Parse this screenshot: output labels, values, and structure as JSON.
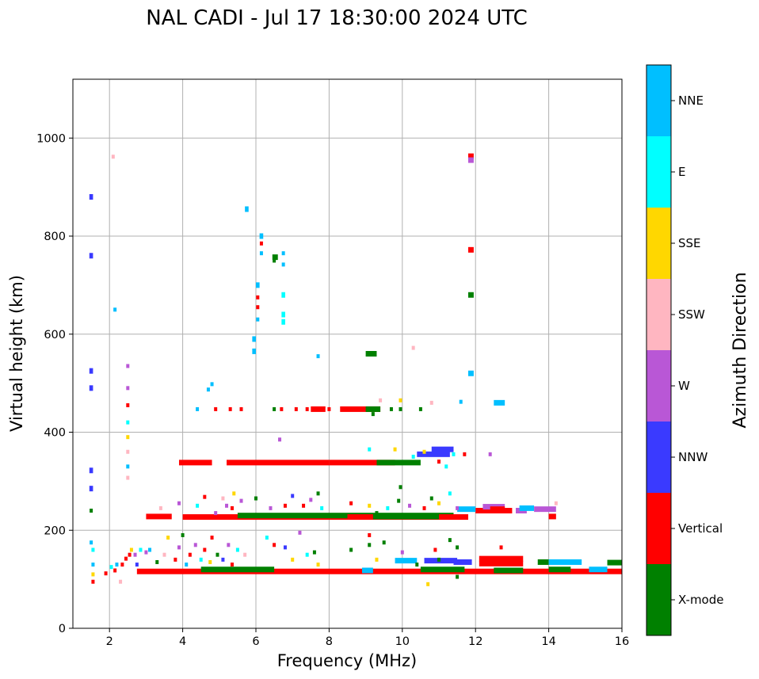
{
  "chart_data": {
    "type": "scatter",
    "title": "NAL CADI - Jul 17 18:30:00 2024 UTC",
    "xlabel": "Frequency (MHz)",
    "ylabel": "Virtual height (km)",
    "xlim": [
      1.0,
      16.0
    ],
    "ylim": [
      0,
      1120
    ],
    "xticks": [
      2,
      4,
      6,
      8,
      10,
      12,
      14,
      16
    ],
    "yticks": [
      0,
      200,
      400,
      600,
      800,
      1000
    ],
    "grid": true,
    "colorbar": {
      "title": "Azimuth Direction",
      "categories": [
        {
          "label": "X-mode",
          "color": "#008000"
        },
        {
          "label": "Vertical",
          "color": "#ff0000"
        },
        {
          "label": "NNW",
          "color": "#3a3aff"
        },
        {
          "label": "W",
          "color": "#b957d6"
        },
        {
          "label": "SSW",
          "color": "#ffb6c1"
        },
        {
          "label": "SSE",
          "color": "#ffd700"
        },
        {
          "label": "E",
          "color": "#00ffff"
        },
        {
          "label": "NNE",
          "color": "#00bfff"
        }
      ]
    },
    "segments": [
      {
        "x1": 2.75,
        "x2": 16.0,
        "y": 116,
        "c": "Vertical"
      },
      {
        "x1": 4.5,
        "x2": 6.5,
        "y": 120,
        "c": "X-mode"
      },
      {
        "x1": 8.9,
        "x2": 9.2,
        "y": 118,
        "c": "NNE"
      },
      {
        "x1": 10.5,
        "x2": 11.7,
        "y": 120,
        "c": "X-mode"
      },
      {
        "x1": 12.5,
        "x2": 13.3,
        "y": 118,
        "c": "X-mode"
      },
      {
        "x1": 14.0,
        "x2": 14.6,
        "y": 120,
        "c": "X-mode"
      },
      {
        "x1": 15.1,
        "x2": 15.6,
        "y": 120,
        "c": "NNE"
      },
      {
        "x1": 15.6,
        "x2": 16.0,
        "y": 134,
        "c": "X-mode"
      },
      {
        "x1": 12.1,
        "x2": 13.3,
        "y": 132,
        "c": "Vertical"
      },
      {
        "x1": 12.1,
        "x2": 13.3,
        "y": 142,
        "c": "Vertical"
      },
      {
        "x1": 13.7,
        "x2": 14.0,
        "y": 135,
        "c": "X-mode"
      },
      {
        "x1": 14.0,
        "x2": 14.9,
        "y": 135,
        "c": "NNE"
      },
      {
        "x1": 10.6,
        "x2": 11.5,
        "y": 138,
        "c": "NNW"
      },
      {
        "x1": 11.4,
        "x2": 11.9,
        "y": 135,
        "c": "NNW"
      },
      {
        "x1": 9.8,
        "x2": 10.4,
        "y": 138,
        "c": "NNE"
      },
      {
        "x1": 3.0,
        "x2": 3.7,
        "y": 228,
        "c": "Vertical"
      },
      {
        "x1": 4.0,
        "x2": 8.5,
        "y": 227,
        "c": "Vertical"
      },
      {
        "x1": 5.5,
        "x2": 11.4,
        "y": 230,
        "c": "X-mode"
      },
      {
        "x1": 8.5,
        "x2": 11.8,
        "y": 227,
        "c": "Vertical"
      },
      {
        "x1": 9.2,
        "x2": 11.0,
        "y": 228,
        "c": "X-mode"
      },
      {
        "x1": 12.0,
        "x2": 13.0,
        "y": 240,
        "c": "Vertical"
      },
      {
        "x1": 12.2,
        "x2": 12.8,
        "y": 248,
        "c": "W"
      },
      {
        "x1": 12.4,
        "x2": 12.8,
        "y": 243,
        "c": "Vertical"
      },
      {
        "x1": 13.1,
        "x2": 13.4,
        "y": 240,
        "c": "W"
      },
      {
        "x1": 13.2,
        "x2": 13.6,
        "y": 245,
        "c": "NNE"
      },
      {
        "x1": 13.6,
        "x2": 14.2,
        "y": 243,
        "c": "W"
      },
      {
        "x1": 14.0,
        "x2": 14.2,
        "y": 228,
        "c": "Vertical"
      },
      {
        "x1": 11.5,
        "x2": 12.0,
        "y": 243,
        "c": "NNE"
      },
      {
        "x1": 3.9,
        "x2": 4.8,
        "y": 338,
        "c": "Vertical"
      },
      {
        "x1": 5.2,
        "x2": 8.0,
        "y": 338,
        "c": "Vertical"
      },
      {
        "x1": 8.0,
        "x2": 9.8,
        "y": 338,
        "c": "Vertical"
      },
      {
        "x1": 9.3,
        "x2": 10.5,
        "y": 338,
        "c": "X-mode"
      },
      {
        "x1": 10.4,
        "x2": 11.3,
        "y": 355,
        "c": "NNW"
      },
      {
        "x1": 10.8,
        "x2": 11.4,
        "y": 365,
        "c": "NNW"
      },
      {
        "x1": 8.3,
        "x2": 9.4,
        "y": 447,
        "c": "Vertical"
      },
      {
        "x1": 7.5,
        "x2": 7.9,
        "y": 447,
        "c": "Vertical"
      },
      {
        "x1": 9.0,
        "x2": 9.4,
        "y": 447,
        "c": "X-mode"
      },
      {
        "x1": 9.0,
        "x2": 9.3,
        "y": 560,
        "c": "X-mode"
      },
      {
        "x1": 5.7,
        "x2": 5.8,
        "y": 855,
        "c": "NNE"
      },
      {
        "x1": 6.1,
        "x2": 6.2,
        "y": 800,
        "c": "NNE"
      },
      {
        "x1": 6.45,
        "x2": 6.6,
        "y": 757,
        "c": "X-mode"
      },
      {
        "x1": 6.7,
        "x2": 6.8,
        "y": 680,
        "c": "E"
      },
      {
        "x1": 6.7,
        "x2": 6.8,
        "y": 640,
        "c": "E"
      },
      {
        "x1": 6.7,
        "x2": 6.8,
        "y": 625,
        "c": "E"
      },
      {
        "x1": 5.9,
        "x2": 6.0,
        "y": 590,
        "c": "NNE"
      },
      {
        "x1": 5.9,
        "x2": 6.0,
        "y": 565,
        "c": "NNE"
      },
      {
        "x1": 6.0,
        "x2": 6.1,
        "y": 700,
        "c": "NNE"
      },
      {
        "x1": 11.8,
        "x2": 11.95,
        "y": 963,
        "c": "Vertical"
      },
      {
        "x1": 11.8,
        "x2": 11.95,
        "y": 955,
        "c": "W"
      },
      {
        "x1": 11.8,
        "x2": 11.95,
        "y": 772,
        "c": "Vertical"
      },
      {
        "x1": 11.8,
        "x2": 11.95,
        "y": 680,
        "c": "X-mode"
      },
      {
        "x1": 11.8,
        "x2": 11.95,
        "y": 520,
        "c": "NNE"
      },
      {
        "x1": 12.5,
        "x2": 12.8,
        "y": 460,
        "c": "NNE"
      },
      {
        "x1": 1.45,
        "x2": 1.55,
        "y": 880,
        "c": "NNW"
      },
      {
        "x1": 1.45,
        "x2": 1.55,
        "y": 760,
        "c": "NNW"
      },
      {
        "x1": 1.45,
        "x2": 1.55,
        "y": 525,
        "c": "NNW"
      },
      {
        "x1": 1.45,
        "x2": 1.55,
        "y": 490,
        "c": "NNW"
      },
      {
        "x1": 1.45,
        "x2": 1.55,
        "y": 322,
        "c": "NNW"
      },
      {
        "x1": 1.45,
        "x2": 1.55,
        "y": 285,
        "c": "NNW"
      }
    ],
    "points": [
      {
        "x": 2.1,
        "y": 962,
        "c": "SSW"
      },
      {
        "x": 2.15,
        "y": 650,
        "c": "NNE"
      },
      {
        "x": 2.5,
        "y": 535,
        "c": "W"
      },
      {
        "x": 2.5,
        "y": 490,
        "c": "W"
      },
      {
        "x": 2.5,
        "y": 455,
        "c": "Vertical"
      },
      {
        "x": 2.5,
        "y": 420,
        "c": "E"
      },
      {
        "x": 2.5,
        "y": 390,
        "c": "SSE"
      },
      {
        "x": 2.5,
        "y": 360,
        "c": "SSW"
      },
      {
        "x": 2.5,
        "y": 330,
        "c": "NNE"
      },
      {
        "x": 2.5,
        "y": 307,
        "c": "SSW"
      },
      {
        "x": 1.5,
        "y": 240,
        "c": "X-mode"
      },
      {
        "x": 1.5,
        "y": 175,
        "c": "NNE"
      },
      {
        "x": 1.55,
        "y": 160,
        "c": "E"
      },
      {
        "x": 1.55,
        "y": 130,
        "c": "NNE"
      },
      {
        "x": 1.55,
        "y": 110,
        "c": "SSE"
      },
      {
        "x": 1.55,
        "y": 95,
        "c": "Vertical"
      },
      {
        "x": 1.9,
        "y": 112,
        "c": "Vertical"
      },
      {
        "x": 2.05,
        "y": 125,
        "c": "E"
      },
      {
        "x": 2.15,
        "y": 118,
        "c": "Vertical"
      },
      {
        "x": 2.2,
        "y": 130,
        "c": "NNE"
      },
      {
        "x": 2.3,
        "y": 95,
        "c": "SSW"
      },
      {
        "x": 2.35,
        "y": 130,
        "c": "Vertical"
      },
      {
        "x": 2.45,
        "y": 142,
        "c": "Vertical"
      },
      {
        "x": 2.55,
        "y": 150,
        "c": "Vertical"
      },
      {
        "x": 2.6,
        "y": 160,
        "c": "SSE"
      },
      {
        "x": 2.7,
        "y": 150,
        "c": "W"
      },
      {
        "x": 2.75,
        "y": 130,
        "c": "NNW"
      },
      {
        "x": 2.85,
        "y": 160,
        "c": "E"
      },
      {
        "x": 3.0,
        "y": 155,
        "c": "W"
      },
      {
        "x": 3.1,
        "y": 160,
        "c": "NNE"
      },
      {
        "x": 3.3,
        "y": 135,
        "c": "X-mode"
      },
      {
        "x": 3.5,
        "y": 150,
        "c": "SSW"
      },
      {
        "x": 3.6,
        "y": 185,
        "c": "SSE"
      },
      {
        "x": 3.8,
        "y": 140,
        "c": "Vertical"
      },
      {
        "x": 3.9,
        "y": 165,
        "c": "W"
      },
      {
        "x": 4.0,
        "y": 190,
        "c": "X-mode"
      },
      {
        "x": 4.1,
        "y": 130,
        "c": "NNE"
      },
      {
        "x": 4.2,
        "y": 150,
        "c": "Vertical"
      },
      {
        "x": 4.35,
        "y": 170,
        "c": "W"
      },
      {
        "x": 4.5,
        "y": 140,
        "c": "E"
      },
      {
        "x": 4.6,
        "y": 160,
        "c": "Vertical"
      },
      {
        "x": 4.75,
        "y": 135,
        "c": "SSE"
      },
      {
        "x": 4.8,
        "y": 185,
        "c": "Vertical"
      },
      {
        "x": 4.95,
        "y": 150,
        "c": "X-mode"
      },
      {
        "x": 5.1,
        "y": 140,
        "c": "NNW"
      },
      {
        "x": 5.25,
        "y": 170,
        "c": "W"
      },
      {
        "x": 5.35,
        "y": 130,
        "c": "Vertical"
      },
      {
        "x": 5.5,
        "y": 160,
        "c": "E"
      },
      {
        "x": 5.7,
        "y": 150,
        "c": "SSW"
      },
      {
        "x": 6.3,
        "y": 185,
        "c": "E"
      },
      {
        "x": 6.5,
        "y": 170,
        "c": "Vertical"
      },
      {
        "x": 6.8,
        "y": 165,
        "c": "NNW"
      },
      {
        "x": 7.0,
        "y": 140,
        "c": "SSE"
      },
      {
        "x": 7.2,
        "y": 195,
        "c": "W"
      },
      {
        "x": 7.4,
        "y": 150,
        "c": "E"
      },
      {
        "x": 7.6,
        "y": 155,
        "c": "X-mode"
      },
      {
        "x": 7.7,
        "y": 130,
        "c": "SSE"
      },
      {
        "x": 8.6,
        "y": 160,
        "c": "X-mode"
      },
      {
        "x": 9.1,
        "y": 190,
        "c": "Vertical"
      },
      {
        "x": 9.1,
        "y": 170,
        "c": "X-mode"
      },
      {
        "x": 9.3,
        "y": 140,
        "c": "SSE"
      },
      {
        "x": 9.5,
        "y": 175,
        "c": "X-mode"
      },
      {
        "x": 10.0,
        "y": 155,
        "c": "W"
      },
      {
        "x": 10.4,
        "y": 130,
        "c": "X-mode"
      },
      {
        "x": 10.7,
        "y": 90,
        "c": "SSE"
      },
      {
        "x": 10.9,
        "y": 160,
        "c": "Vertical"
      },
      {
        "x": 11.0,
        "y": 140,
        "c": "X-mode"
      },
      {
        "x": 11.3,
        "y": 180,
        "c": "X-mode"
      },
      {
        "x": 11.5,
        "y": 165,
        "c": "X-mode"
      },
      {
        "x": 11.5,
        "y": 105,
        "c": "X-mode"
      },
      {
        "x": 12.7,
        "y": 165,
        "c": "Vertical"
      },
      {
        "x": 3.4,
        "y": 245,
        "c": "SSW"
      },
      {
        "x": 3.9,
        "y": 255,
        "c": "W"
      },
      {
        "x": 4.4,
        "y": 250,
        "c": "E"
      },
      {
        "x": 4.6,
        "y": 268,
        "c": "Vertical"
      },
      {
        "x": 4.9,
        "y": 235,
        "c": "W"
      },
      {
        "x": 5.1,
        "y": 265,
        "c": "SSW"
      },
      {
        "x": 5.2,
        "y": 250,
        "c": "W"
      },
      {
        "x": 5.35,
        "y": 245,
        "c": "Vertical"
      },
      {
        "x": 5.4,
        "y": 275,
        "c": "SSE"
      },
      {
        "x": 5.6,
        "y": 260,
        "c": "W"
      },
      {
        "x": 6.0,
        "y": 265,
        "c": "X-mode"
      },
      {
        "x": 6.4,
        "y": 245,
        "c": "W"
      },
      {
        "x": 6.8,
        "y": 250,
        "c": "Vertical"
      },
      {
        "x": 7.0,
        "y": 270,
        "c": "NNW"
      },
      {
        "x": 7.3,
        "y": 250,
        "c": "Vertical"
      },
      {
        "x": 7.5,
        "y": 262,
        "c": "W"
      },
      {
        "x": 7.7,
        "y": 275,
        "c": "X-mode"
      },
      {
        "x": 7.8,
        "y": 245,
        "c": "E"
      },
      {
        "x": 8.6,
        "y": 255,
        "c": "Vertical"
      },
      {
        "x": 9.1,
        "y": 250,
        "c": "SSE"
      },
      {
        "x": 9.3,
        "y": 235,
        "c": "X-mode"
      },
      {
        "x": 9.6,
        "y": 245,
        "c": "E"
      },
      {
        "x": 9.9,
        "y": 260,
        "c": "X-mode"
      },
      {
        "x": 9.95,
        "y": 288,
        "c": "X-mode"
      },
      {
        "x": 10.2,
        "y": 250,
        "c": "W"
      },
      {
        "x": 10.6,
        "y": 245,
        "c": "Vertical"
      },
      {
        "x": 10.8,
        "y": 265,
        "c": "X-mode"
      },
      {
        "x": 11.0,
        "y": 255,
        "c": "SSE"
      },
      {
        "x": 11.3,
        "y": 275,
        "c": "E"
      },
      {
        "x": 11.5,
        "y": 245,
        "c": "W"
      },
      {
        "x": 14.2,
        "y": 255,
        "c": "SSW"
      },
      {
        "x": 6.65,
        "y": 385,
        "c": "W"
      },
      {
        "x": 9.1,
        "y": 365,
        "c": "E"
      },
      {
        "x": 9.8,
        "y": 365,
        "c": "SSE"
      },
      {
        "x": 10.3,
        "y": 350,
        "c": "E"
      },
      {
        "x": 10.6,
        "y": 360,
        "c": "SSE"
      },
      {
        "x": 11.0,
        "y": 340,
        "c": "Vertical"
      },
      {
        "x": 11.2,
        "y": 330,
        "c": "E"
      },
      {
        "x": 11.4,
        "y": 355,
        "c": "E"
      },
      {
        "x": 11.7,
        "y": 355,
        "c": "Vertical"
      },
      {
        "x": 12.4,
        "y": 355,
        "c": "W"
      },
      {
        "x": 4.4,
        "y": 447,
        "c": "NNE"
      },
      {
        "x": 4.9,
        "y": 447,
        "c": "Vertical"
      },
      {
        "x": 5.3,
        "y": 447,
        "c": "Vertical"
      },
      {
        "x": 5.6,
        "y": 447,
        "c": "Vertical"
      },
      {
        "x": 6.5,
        "y": 447,
        "c": "X-mode"
      },
      {
        "x": 6.7,
        "y": 447,
        "c": "Vertical"
      },
      {
        "x": 7.1,
        "y": 447,
        "c": "Vertical"
      },
      {
        "x": 7.4,
        "y": 447,
        "c": "Vertical"
      },
      {
        "x": 8.0,
        "y": 447,
        "c": "Vertical"
      },
      {
        "x": 9.2,
        "y": 437,
        "c": "X-mode"
      },
      {
        "x": 9.4,
        "y": 465,
        "c": "SSW"
      },
      {
        "x": 9.7,
        "y": 447,
        "c": "X-mode"
      },
      {
        "x": 9.95,
        "y": 465,
        "c": "SSE"
      },
      {
        "x": 9.95,
        "y": 447,
        "c": "X-mode"
      },
      {
        "x": 10.5,
        "y": 447,
        "c": "X-mode"
      },
      {
        "x": 10.8,
        "y": 460,
        "c": "SSW"
      },
      {
        "x": 11.6,
        "y": 462,
        "c": "NNE"
      },
      {
        "x": 4.7,
        "y": 487,
        "c": "NNE"
      },
      {
        "x": 4.8,
        "y": 498,
        "c": "NNE"
      },
      {
        "x": 7.7,
        "y": 555,
        "c": "NNE"
      },
      {
        "x": 10.3,
        "y": 572,
        "c": "SSW"
      },
      {
        "x": 6.05,
        "y": 675,
        "c": "Vertical"
      },
      {
        "x": 6.05,
        "y": 655,
        "c": "Vertical"
      },
      {
        "x": 6.05,
        "y": 630,
        "c": "NNE"
      },
      {
        "x": 6.15,
        "y": 785,
        "c": "Vertical"
      },
      {
        "x": 6.15,
        "y": 765,
        "c": "NNE"
      },
      {
        "x": 6.5,
        "y": 750,
        "c": "X-mode"
      },
      {
        "x": 6.75,
        "y": 765,
        "c": "NNE"
      },
      {
        "x": 6.75,
        "y": 742,
        "c": "NNE"
      }
    ]
  }
}
